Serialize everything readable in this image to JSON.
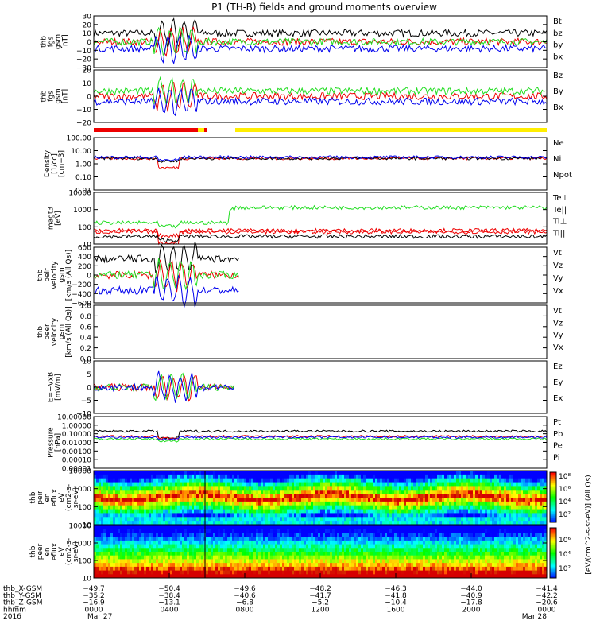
{
  "title": "P1 (TH-B) fields and ground moments overview",
  "colors": {
    "black": "#000000",
    "red": "#ee0000",
    "green": "#22dd22",
    "blue": "#0000ee",
    "yellow": "#ffee00"
  },
  "chart_data": [
    {
      "id": "p1",
      "type": "line",
      "ylabel": [
        "thb",
        "fgs",
        "gsm",
        "[nT]"
      ],
      "yticks": [
        "30",
        "20",
        "10",
        "0",
        "−10",
        "−20",
        "−30"
      ],
      "legend": [
        {
          "name": "Bt",
          "color": "black"
        },
        {
          "name": "bz",
          "color": "red"
        },
        {
          "name": "by",
          "color": "green"
        },
        {
          "name": "bx",
          "color": "blue"
        }
      ],
      "ylim": [
        -30,
        30
      ]
    },
    {
      "id": "p2",
      "type": "line",
      "ylabel": [
        "thb",
        "fgs",
        "gsm",
        "[nT]"
      ],
      "yticks": [
        "20",
        "10",
        "0",
        "−10",
        "−20"
      ],
      "legend": [
        {
          "name": "Bz",
          "color": "red"
        },
        {
          "name": "By",
          "color": "green"
        },
        {
          "name": "Bx",
          "color": "blue"
        }
      ],
      "ylim": [
        -25,
        25
      ]
    },
    {
      "id": "p3",
      "type": "line",
      "ylabel": [
        "Density",
        "[1/cc]",
        "[cm−3]"
      ],
      "yticks": [
        "100.00",
        "10.00",
        "1.00",
        "0.10",
        "0.01"
      ],
      "legend": [
        {
          "name": "Ne",
          "color": "red"
        },
        {
          "name": "Ni",
          "color": "black"
        },
        {
          "name": "Npot",
          "color": "blue"
        }
      ],
      "ylim": [
        0.01,
        300
      ],
      "log": true
    },
    {
      "id": "p4",
      "type": "line",
      "ylabel": [
        "magt3",
        "[eV]"
      ],
      "yticks": [
        "10000",
        "1000",
        "100",
        "10"
      ],
      "legend": [
        {
          "name": "Te⊥",
          "color": "red"
        },
        {
          "name": "Te||",
          "color": "black"
        },
        {
          "name": "Ti⊥",
          "color": "red"
        },
        {
          "name": "Ti||",
          "color": "green"
        }
      ],
      "ylim": [
        4,
        10000
      ],
      "log": true
    },
    {
      "id": "p5",
      "type": "line",
      "ylabel": [
        "thb",
        "peir",
        "velocity",
        "gsm",
        "[km/s (All Qs)]"
      ],
      "yticks": [
        "600",
        "400",
        "200",
        "0",
        "−200",
        "−400",
        "−600"
      ],
      "legend": [
        {
          "name": "Vt",
          "color": "black"
        },
        {
          "name": "Vz",
          "color": "red"
        },
        {
          "name": "Vy",
          "color": "green"
        },
        {
          "name": "Vx",
          "color": "blue"
        }
      ],
      "ylim": [
        -600,
        600
      ]
    },
    {
      "id": "p6",
      "type": "line",
      "ylabel": [
        "thb",
        "peer",
        "velocity",
        "gsm",
        "[km/s (All Qs)]"
      ],
      "yticks": [
        "1.0",
        "0.8",
        "0.6",
        "0.4",
        "0.2",
        "0.0"
      ],
      "legend": [
        {
          "name": "Vt",
          "color": "black"
        },
        {
          "name": "Vz",
          "color": "red"
        },
        {
          "name": "Vy",
          "color": "green"
        },
        {
          "name": "Vx",
          "color": "blue"
        }
      ],
      "ylim": [
        0,
        1
      ]
    },
    {
      "id": "p7",
      "type": "line",
      "ylabel": [
        "E=−VxB",
        "[mV/m]"
      ],
      "yticks": [
        "10",
        "5",
        "0",
        "−5",
        "−10"
      ],
      "legend": [
        {
          "name": "Ez",
          "color": "red"
        },
        {
          "name": "Ey",
          "color": "green"
        },
        {
          "name": "Ex",
          "color": "blue"
        }
      ],
      "ylim": [
        -10,
        10
      ]
    },
    {
      "id": "p8",
      "type": "line",
      "ylabel": [
        "Pressure",
        "[nPa]"
      ],
      "yticks": [
        "10.00000",
        "1.00000",
        "0.10000",
        "0.01000",
        "0.00100",
        "0.00010",
        "0.00001"
      ],
      "legend": [
        {
          "name": "Pt",
          "color": "black"
        },
        {
          "name": "Pb",
          "color": "red"
        },
        {
          "name": "Pe",
          "color": "green"
        },
        {
          "name": "Pi",
          "color": "blue"
        }
      ],
      "ylim": [
        1e-05,
        10
      ],
      "log": true
    },
    {
      "id": "p9",
      "type": "heatmap",
      "ylabel": [
        "thb",
        "peir",
        "en",
        "eflux",
        "eV",
        "(cm2-s-",
        "sr-eV)"
      ],
      "yticks": [
        "10000",
        "1000",
        "100",
        "10"
      ],
      "ylim": [
        10,
        20000
      ],
      "log": true
    },
    {
      "id": "p10",
      "type": "heatmap",
      "ylabel": [
        "thb",
        "peer",
        "en",
        "eflux",
        "eV",
        "(cm2-s-",
        "sr-eV)"
      ],
      "yticks": [
        "10000",
        "1000",
        "100",
        "10"
      ],
      "ylim": [
        10,
        20000
      ],
      "log": true
    }
  ],
  "colorbar": {
    "label": "[eV/(cm^2-s-sr-eV)] (All Qs)",
    "upper_ticks": [
      "10⁸",
      "10⁶",
      "10⁴",
      "10²"
    ],
    "lower_ticks": [
      "10⁶",
      "10⁴",
      "10²"
    ]
  },
  "xaxis": {
    "rows": [
      {
        "label": "thb_X-GSM",
        "values": [
          "−49.7",
          "−50.4",
          "−49.6",
          "−48.2",
          "−46.3",
          "−44.0",
          "−41.4"
        ]
      },
      {
        "label": "thb_Y-GSM",
        "values": [
          "−35.2",
          "−38.4",
          "−40.6",
          "−41.7",
          "−41.8",
          "−40.9",
          "−42.2"
        ]
      },
      {
        "label": "thb_Z-GSM",
        "values": [
          "−16.9",
          "−13.1",
          "−6.8",
          "−5.2",
          "−10.4",
          "−17.8",
          "−20.6"
        ]
      },
      {
        "label": "hhmm",
        "values": [
          "0000",
          "0400",
          "0800",
          "1200",
          "1600",
          "2000",
          "0000"
        ]
      },
      {
        "label": "2016",
        "values": [
          "Mar 27",
          "",
          "",
          "",
          "",
          "",
          "Mar 28"
        ]
      }
    ]
  }
}
